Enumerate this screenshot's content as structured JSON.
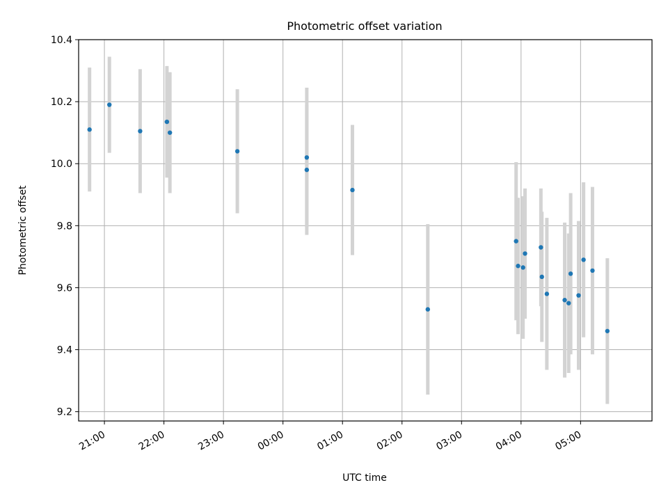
{
  "chart_data": {
    "type": "scatter",
    "title": "Photometric offset variation",
    "xlabel": "UTC time",
    "ylabel": "Photometric offset",
    "grid": true,
    "x_is_time": true,
    "xlim": [
      "20:34",
      "06:12"
    ],
    "ylim": [
      9.17,
      10.4
    ],
    "x_ticks": [
      "21:00",
      "22:00",
      "23:00",
      "00:00",
      "01:00",
      "02:00",
      "03:00",
      "04:00",
      "05:00"
    ],
    "y_ticks": [
      "9.2",
      "9.4",
      "9.6",
      "9.8",
      "10.0",
      "10.2",
      "10.4"
    ],
    "colors": {
      "point": "#1f77b4",
      "errorbar": "#d3d3d3",
      "grid": "#b0b0b0",
      "axes": "#000000"
    },
    "series": [
      {
        "points": [
          {
            "x": "20:45",
            "y": 10.11,
            "err": 0.2
          },
          {
            "x": "21:05",
            "y": 10.19,
            "err": 0.155
          },
          {
            "x": "21:36",
            "y": 10.105,
            "err": 0.2
          },
          {
            "x": "22:03",
            "y": 10.135,
            "err": 0.18
          },
          {
            "x": "22:06",
            "y": 10.1,
            "err": 0.195
          },
          {
            "x": "23:14",
            "y": 10.04,
            "err": 0.2
          },
          {
            "x": "00:24",
            "y": 10.02,
            "err": 0.225
          },
          {
            "x": "00:24",
            "y": 9.98,
            "err": 0.21
          },
          {
            "x": "01:10",
            "y": 9.915,
            "err": 0.21
          },
          {
            "x": "02:26",
            "y": 9.53,
            "err": 0.275
          },
          {
            "x": "03:55",
            "y": 9.75,
            "err": 0.255
          },
          {
            "x": "03:57",
            "y": 9.67,
            "err": 0.22
          },
          {
            "x": "04:02",
            "y": 9.665,
            "err": 0.23
          },
          {
            "x": "04:04",
            "y": 9.71,
            "err": 0.21
          },
          {
            "x": "04:20",
            "y": 9.73,
            "err": 0.19
          },
          {
            "x": "04:21",
            "y": 9.635,
            "err": 0.21
          },
          {
            "x": "04:26",
            "y": 9.58,
            "err": 0.245
          },
          {
            "x": "04:44",
            "y": 9.56,
            "err": 0.25
          },
          {
            "x": "04:48",
            "y": 9.55,
            "err": 0.225
          },
          {
            "x": "04:50",
            "y": 9.645,
            "err": 0.26
          },
          {
            "x": "04:58",
            "y": 9.575,
            "err": 0.24
          },
          {
            "x": "05:03",
            "y": 9.69,
            "err": 0.25
          },
          {
            "x": "05:12",
            "y": 9.655,
            "err": 0.27
          },
          {
            "x": "05:27",
            "y": 9.46,
            "err": 0.235
          }
        ]
      }
    ]
  }
}
